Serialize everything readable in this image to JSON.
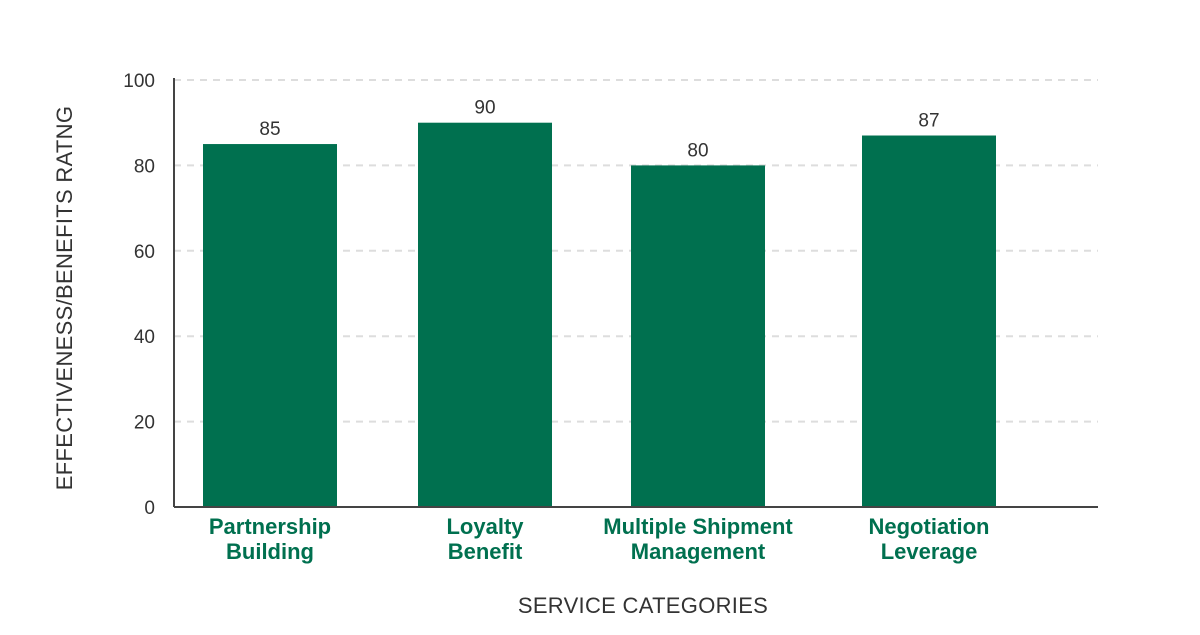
{
  "chart_data": {
    "type": "bar",
    "categories": [
      [
        "Partnership",
        "Building"
      ],
      [
        "Loyalty",
        "Benefit"
      ],
      [
        "Multiple Shipment",
        "Management"
      ],
      [
        "Negotiation",
        "Leverage"
      ]
    ],
    "values": [
      85,
      90,
      80,
      87
    ],
    "value_labels": [
      "85",
      "90",
      "80",
      "87"
    ],
    "xlabel": "SERVICE CATEGORIES",
    "ylabel": "EFFECTIVENESS/BENEFITS RATNG",
    "ylim": [
      0,
      100
    ],
    "yticks": [
      0,
      20,
      40,
      60,
      80,
      100
    ],
    "grid": true,
    "bar_color": "#00704f",
    "label_color": "#00704f"
  }
}
